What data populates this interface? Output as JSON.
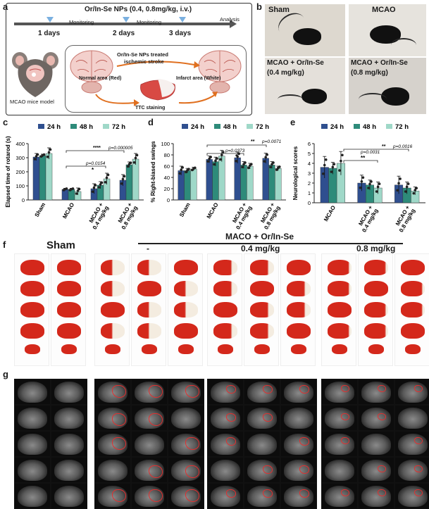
{
  "panel_a": {
    "letter": "a",
    "title": "Or/In-Se NPs (0.4, 0.8mg/kg, i.v.)",
    "timeline_labels": [
      "1 days",
      "2 days",
      "3 days"
    ],
    "monitoring_labels": [
      "Monitoring",
      "Monitoring"
    ],
    "analysis_label": "Analysis",
    "mice_model_label": "MCAO mice model",
    "treated_label_line1": "Or/In-Se NPs treated",
    "treated_label_line2": "ischemic stroke",
    "normal_area_label": "Normal area (Red)",
    "infarct_area_label": "Infarct area (White)",
    "ttc_label": "TTC staining"
  },
  "panel_b": {
    "letter": "b",
    "sham_label": "Sham",
    "mcao_label": "MCAO",
    "combo1_line1": "MCAO + Or/In-Se",
    "combo1_line2": "(0.4 mg/kg)",
    "combo2_line1": "MCAO + Or/In-Se",
    "combo2_line2": "(0.8 mg/kg)"
  },
  "legend": {
    "items": [
      "24 h",
      "48 h",
      "72 h"
    ],
    "colors": [
      "#2f4f8f",
      "#2e8b7a",
      "#9fd8c8"
    ]
  },
  "chart_data": [
    {
      "panel": "c",
      "type": "bar",
      "ylabel": "Elapsed time of rotarod (s)",
      "ylim": [
        0,
        400
      ],
      "yticks": [
        "0",
        "100",
        "200",
        "300",
        "400"
      ],
      "categories": [
        "Sham",
        "MCAO",
        "MCAO + 0.4 mg/kg",
        "MCAO + 0.8 mg/kg"
      ],
      "category_lines": [
        [
          "Sham"
        ],
        [
          "MCAO"
        ],
        [
          "MCAO +",
          "0.4 mg/kg"
        ],
        [
          "MCAO +",
          "0.8 mg/kg"
        ]
      ],
      "series": [
        {
          "name": "24 h",
          "values": [
            305,
            75,
            80,
            140
          ],
          "errors": [
            25,
            8,
            35,
            40
          ]
        },
        {
          "name": "48 h",
          "values": [
            315,
            75,
            105,
            250
          ],
          "errors": [
            10,
            8,
            25,
            20
          ]
        },
        {
          "name": "72 h",
          "values": [
            330,
            60,
            150,
            290
          ],
          "errors": [
            40,
            25,
            40,
            40
          ]
        }
      ],
      "annotations": [
        "p=0.0154",
        "*",
        "****",
        "p=0.000005"
      ]
    },
    {
      "panel": "d",
      "type": "bar",
      "ylabel": "% Right-biased swings",
      "ylim": [
        0,
        100
      ],
      "yticks": [
        "0",
        "20",
        "40",
        "60",
        "80",
        "100"
      ],
      "categories": [
        "Sham",
        "MCAO",
        "MCAO + 0.4 mg/kg",
        "MCAO + 0.8 mg/kg"
      ],
      "category_lines": [
        [
          "Sham"
        ],
        [
          "MCAO"
        ],
        [
          "MCAO +",
          "0.4 mg/kg"
        ],
        [
          "MCAO +",
          "0.8 mg/kg"
        ]
      ],
      "series": [
        {
          "name": "24 h",
          "values": [
            52,
            72,
            75,
            74
          ],
          "errors": [
            8,
            6,
            10,
            9
          ]
        },
        {
          "name": "48 h",
          "values": [
            52,
            68,
            62,
            62
          ],
          "errors": [
            4,
            8,
            6,
            6
          ]
        },
        {
          "name": "72 h",
          "values": [
            55,
            78,
            60,
            56
          ],
          "errors": [
            3,
            10,
            5,
            4
          ]
        }
      ],
      "annotations": [
        "p=0.0373",
        "*",
        "**",
        "p=0.0071"
      ]
    },
    {
      "panel": "e",
      "type": "bar",
      "ylabel": "Neurological scores",
      "ylim": [
        0,
        6
      ],
      "yticks": [
        "0",
        "1",
        "2",
        "3",
        "4",
        "5",
        "6"
      ],
      "categories": [
        "MCAO",
        "MCAO + 0.4 mg/kg",
        "MCAO + 0.8 mg/kg"
      ],
      "category_lines": [
        [
          "MCAO"
        ],
        [
          "MCAO +",
          "0.4 mg/kg"
        ],
        [
          "MCAO +",
          "0.8 mg/kg"
        ]
      ],
      "series": [
        {
          "name": "24 h",
          "values": [
            3.6,
            2.0,
            1.8
          ],
          "errors": [
            1.1,
            0.8,
            0.9
          ]
        },
        {
          "name": "48 h",
          "values": [
            3.5,
            1.8,
            1.5
          ],
          "errors": [
            0.6,
            0.5,
            0.6
          ]
        },
        {
          "name": "72 h",
          "values": [
            4.0,
            1.5,
            1.2
          ],
          "errors": [
            1.2,
            0.6,
            0.4
          ]
        }
      ],
      "annotations": [
        "p=0.0031",
        "**",
        "**",
        "p=0.0016"
      ]
    }
  ],
  "panel_f": {
    "letter": "f",
    "sham_label": "Sham",
    "group_title": "MACO + Or/In-Se",
    "dose_labels": [
      "-",
      "0.4 mg/kg",
      "0.8 mg/kg"
    ]
  },
  "panel_g": {
    "letter": "g"
  },
  "letters": {
    "c": "c",
    "d": "d",
    "e": "e"
  }
}
